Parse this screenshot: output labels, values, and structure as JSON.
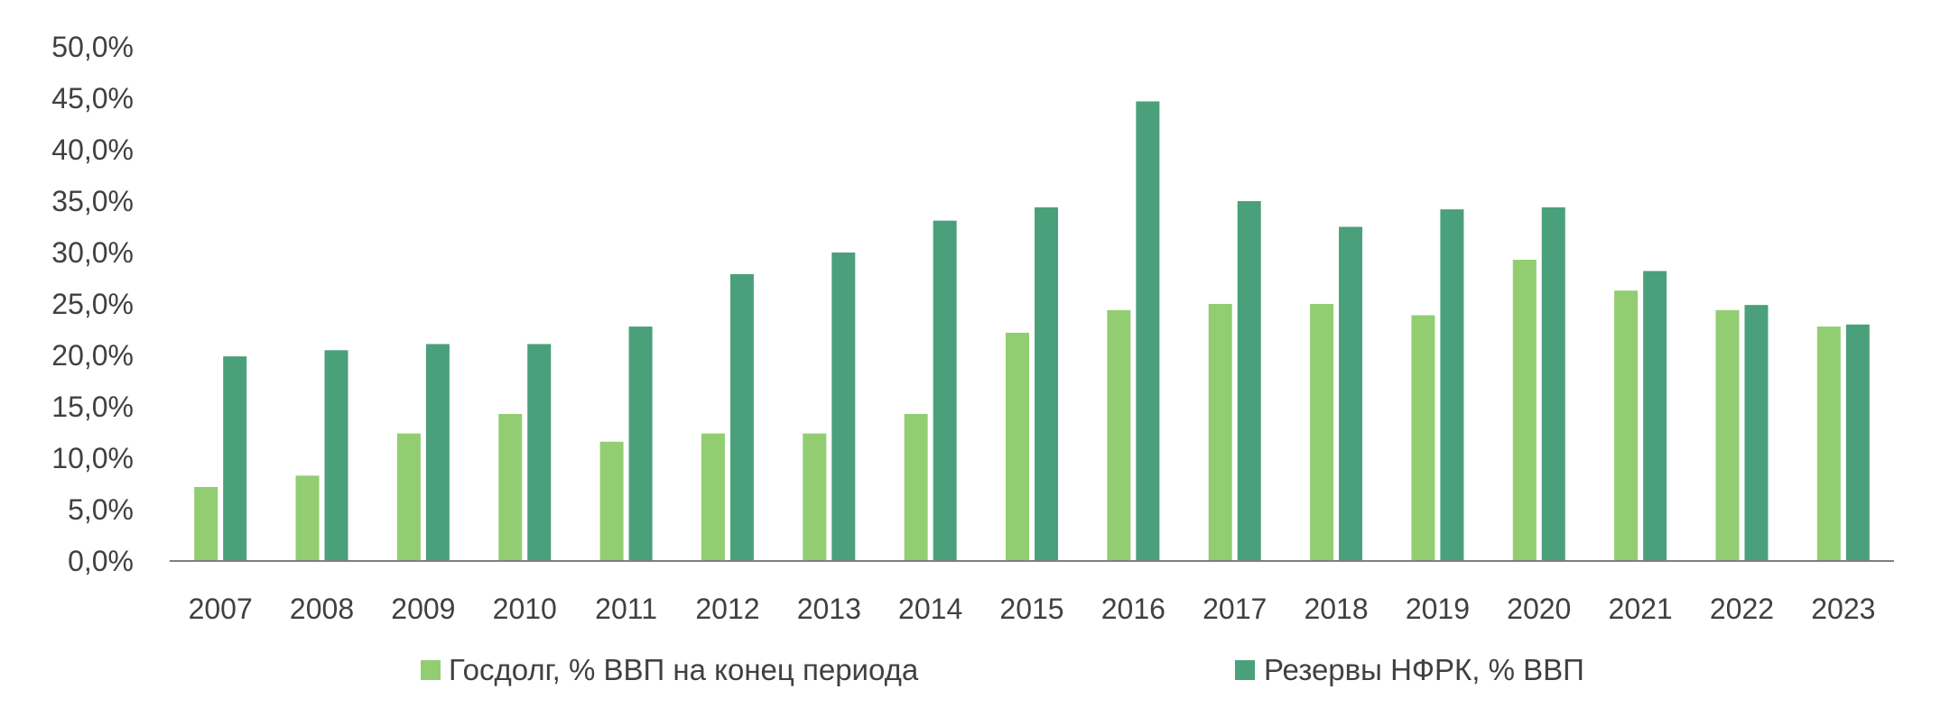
{
  "chart_data": {
    "type": "bar",
    "categories": [
      "2007",
      "2008",
      "2009",
      "2010",
      "2011",
      "2012",
      "2013",
      "2014",
      "2015",
      "2016",
      "2017",
      "2018",
      "2019",
      "2020",
      "2021",
      "2022",
      "2023"
    ],
    "series": [
      {
        "name": "Госдолг, % ВВП на конец периода",
        "color": "#92cd72",
        "values": [
          7.2,
          8.3,
          12.4,
          14.3,
          11.6,
          12.4,
          12.4,
          14.3,
          22.2,
          24.4,
          25.0,
          25.0,
          23.9,
          29.3,
          26.3,
          24.4,
          22.8
        ]
      },
      {
        "name": "Резервы НФРК, % ВВП",
        "color": "#4aa07a",
        "values": [
          19.9,
          20.5,
          21.1,
          21.1,
          22.8,
          27.9,
          30.0,
          33.1,
          34.4,
          44.7,
          35.0,
          32.5,
          34.2,
          34.4,
          28.2,
          24.9,
          23.0
        ]
      }
    ],
    "yticks": [
      "0,0%",
      "5,0%",
      "10,0%",
      "15,0%",
      "20,0%",
      "25,0%",
      "30,0%",
      "35,0%",
      "40,0%",
      "45,0%",
      "50,0%"
    ],
    "ylim": [
      0,
      50
    ],
    "title": "",
    "xlabel": "",
    "ylabel": "",
    "grid": false,
    "legend_position": "bottom"
  }
}
